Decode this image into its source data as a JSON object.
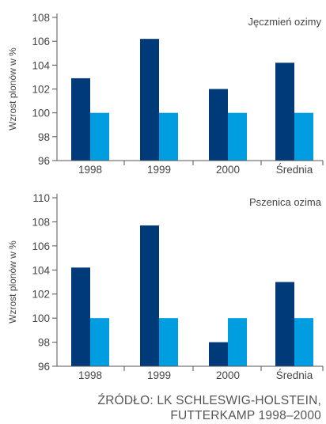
{
  "colors": {
    "series_1": "#003a78",
    "series_2": "#009ee0",
    "axis": "#555555",
    "text": "#444444"
  },
  "chart_data": [
    {
      "type": "bar",
      "title": "Jęczmień ozimy",
      "ylabel": "Wzrost plonów w %",
      "categories": [
        "1998",
        "1999",
        "2000",
        "Średnia"
      ],
      "ylim": [
        96,
        108
      ],
      "yticks": [
        96,
        98,
        100,
        102,
        104,
        106,
        108
      ],
      "grid": false,
      "series": [
        {
          "values": [
            102.9,
            106.2,
            102.0,
            104.2
          ]
        },
        {
          "values": [
            100,
            100,
            100,
            100
          ]
        }
      ]
    },
    {
      "type": "bar",
      "title": "Pszenica ozima",
      "ylabel": "Wzrost plonów w %",
      "categories": [
        "1998",
        "1999",
        "2000",
        "Średnia"
      ],
      "ylim": [
        96,
        110
      ],
      "yticks": [
        96,
        98,
        100,
        102,
        104,
        106,
        108,
        110
      ],
      "grid": false,
      "series": [
        {
          "values": [
            104.2,
            107.7,
            98.0,
            103.0
          ]
        },
        {
          "values": [
            100,
            100,
            100,
            100
          ]
        }
      ]
    }
  ],
  "source": {
    "line1": "ŹRÓDŁO: LK SCHLESWIG-HOLSTEIN,",
    "line2": "FUTTERKAMP 1998–2000"
  }
}
